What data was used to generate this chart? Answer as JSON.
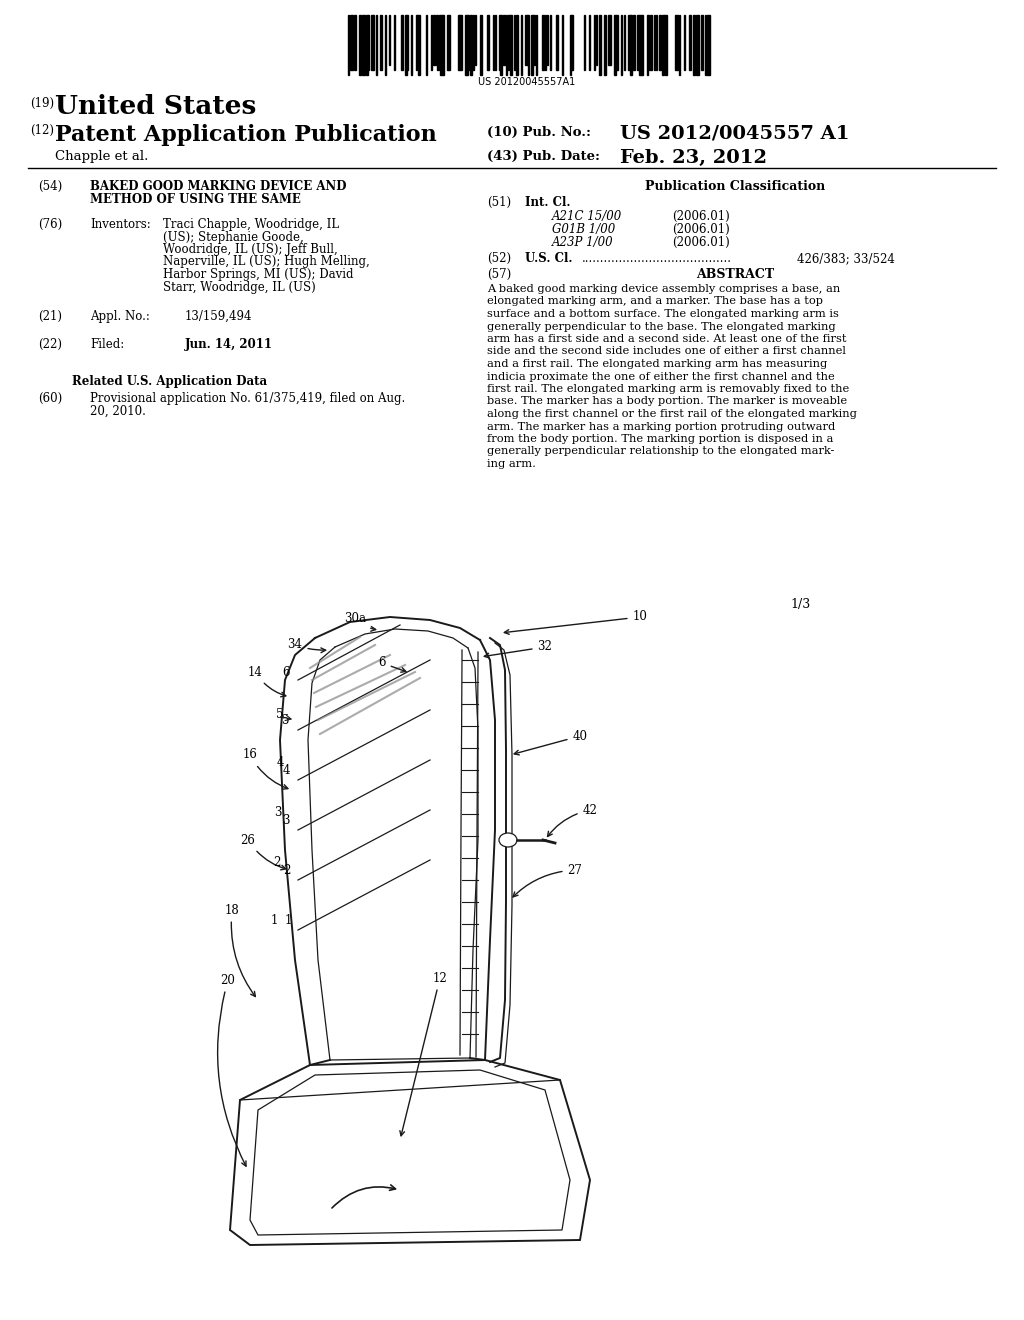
{
  "bg_color": "#ffffff",
  "barcode_text": "US 20120045557A1",
  "header": {
    "country_prefix": "(19)",
    "country": "United States",
    "type_prefix": "(12)",
    "type": "Patent Application Publication",
    "pub_no_prefix": "(10) Pub. No.:",
    "pub_no": "US 2012/0045557 A1",
    "inventors_line": "Chapple et al.",
    "pub_date_prefix": "(43) Pub. Date:",
    "pub_date": "Feb. 23, 2012"
  },
  "left_col": {
    "title_num": "(54)",
    "title_line1": "BAKED GOOD MARKING DEVICE AND",
    "title_line2": "METHOD OF USING THE SAME",
    "inventors_num": "(76)",
    "inventors_label": "Inventors:",
    "inv_lines": [
      "Traci Chapple, Woodridge, IL",
      "(US); Stephanie Goode,",
      "Woodridge, IL (US); Jeff Bull,",
      "Naperville, IL (US); Hugh Melling,",
      "Harbor Springs, MI (US); David",
      "Starr, Woodridge, IL (US)"
    ],
    "appl_num": "(21)",
    "appl_label": "Appl. No.:",
    "appl_value": "13/159,494",
    "filed_num": "(22)",
    "filed_label": "Filed:",
    "filed_value": "Jun. 14, 2011",
    "related_header": "Related U.S. Application Data",
    "provisional_num": "(60)",
    "prov_lines": [
      "Provisional application No. 61/375,419, filed on Aug.",
      "20, 2010."
    ]
  },
  "right_col": {
    "pub_class_header": "Publication Classification",
    "int_cl_num": "(51)",
    "int_cl_label": "Int. Cl.",
    "int_cl_entries": [
      [
        "A21C 15/00",
        "(2006.01)"
      ],
      [
        "G01B 1/00",
        "(2006.01)"
      ],
      [
        "A23P 1/00",
        "(2006.01)"
      ]
    ],
    "us_cl_num": "(52)",
    "us_cl_label": "U.S. Cl.",
    "us_cl_dots": "........................................",
    "us_cl_value": "426/383; 33/524",
    "abstract_num": "(57)",
    "abstract_header": "ABSTRACT",
    "abs_lines": [
      "A baked good marking device assembly comprises a base, an",
      "elongated marking arm, and a marker. The base has a top",
      "surface and a bottom surface. The elongated marking arm is",
      "generally perpendicular to the base. The elongated marking",
      "arm has a first side and a second side. At least one of the first",
      "side and the second side includes one of either a first channel",
      "and a first rail. The elongated marking arm has measuring",
      "indicia proximate the one of either the first channel and the",
      "first rail. The elongated marking arm is removably fixed to the",
      "base. The marker has a body portion. The marker is moveable",
      "along the first channel or the first rail of the elongated marking",
      "arm. The marker has a marking portion protruding outward",
      "from the body portion. The marking portion is disposed in a",
      "generally perpendicular relationship to the elongated mark-",
      "ing arm."
    ]
  },
  "diagram": {
    "page_label": "1/3"
  }
}
